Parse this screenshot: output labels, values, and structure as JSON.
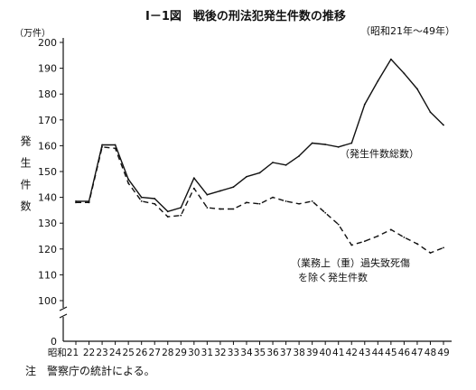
{
  "figure": {
    "title": "Ⅰ－1図　戦後の刑法犯発生件数の推移",
    "period": "（昭和21年～49年）",
    "note": "注　警察庁の統計による。"
  },
  "chart_data": {
    "type": "line",
    "unit_label": "（万件）",
    "ylabel": "発生件数",
    "ylim": [
      100,
      200
    ],
    "y_ticks": [
      100,
      110,
      120,
      130,
      140,
      150,
      160,
      170,
      180,
      190,
      200
    ],
    "y_break": true,
    "x_origin_label": "0",
    "x_tick_labels": [
      "昭和21",
      "22",
      "23",
      "24",
      "25",
      "26",
      "27",
      "28",
      "29",
      "30",
      "31",
      "32",
      "33",
      "34",
      "35",
      "36",
      "37",
      "38",
      "39",
      "40",
      "41",
      "42",
      "43",
      "44",
      "45",
      "46",
      "47",
      "48",
      "49"
    ],
    "grid": false,
    "series": [
      {
        "name": "発生件数総数",
        "name_display": "（発生件数総数）",
        "style": "solid",
        "values": [
          138.5,
          138.5,
          160.3,
          160.3,
          147,
          140,
          139.5,
          134.5,
          136,
          147.5,
          141,
          142.5,
          144,
          148,
          149.5,
          153.5,
          152.5,
          156,
          161,
          160.5,
          159.5,
          161,
          176,
          185,
          193.5,
          188,
          182,
          173,
          168
        ]
      },
      {
        "name": "業務上（重）過失致死傷を除く発生件数",
        "name_display_lines": [
          "（業務上（重）過失致死傷",
          "を除く発生件数"
        ],
        "style": "dashed",
        "values": [
          138,
          138,
          159.5,
          159,
          145.5,
          138.5,
          137.5,
          132.5,
          133,
          143.5,
          136,
          135.5,
          135.5,
          138,
          137.5,
          140,
          138.5,
          137.5,
          138.5,
          134,
          129.5,
          121.5,
          123,
          125,
          127.5,
          124.5,
          122,
          118.5,
          120.5
        ]
      }
    ]
  }
}
